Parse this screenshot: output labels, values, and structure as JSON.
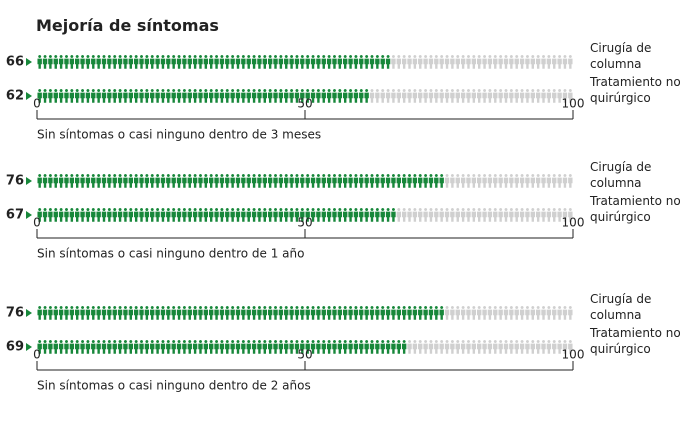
{
  "title": "Mejoría de síntomas",
  "chart_data": [
    {
      "type": "pictograph",
      "categories": [
        "Cirugía de columna",
        "Tratamiento no quirúrgico"
      ],
      "values": [
        66,
        62
      ],
      "xlabel": "Sin síntomas o casi ninguno dentro de 3 meses",
      "xlim": [
        0,
        100
      ],
      "xticks": [
        0,
        50,
        100
      ],
      "color": "#17873a",
      "empty_color": "#d0d0d0"
    },
    {
      "type": "pictograph",
      "categories": [
        "Cirugía de columna",
        "Tratamiento no quirúrgico"
      ],
      "values": [
        76,
        67
      ],
      "xlabel": "Sin síntomas o casi ninguno dentro de 1 año",
      "xlim": [
        0,
        100
      ],
      "xticks": [
        0,
        50,
        100
      ],
      "color": "#17873a",
      "empty_color": "#d0d0d0"
    },
    {
      "type": "pictograph",
      "categories": [
        "Cirugía de columna",
        "Tratamiento no quirúrgico"
      ],
      "values": [
        76,
        69
      ],
      "xlabel": "Sin síntomas o casi ninguno dentro de 2 años",
      "xlim": [
        0,
        100
      ],
      "xticks": [
        0,
        50,
        100
      ],
      "color": "#17873a",
      "empty_color": "#d0d0d0"
    }
  ]
}
